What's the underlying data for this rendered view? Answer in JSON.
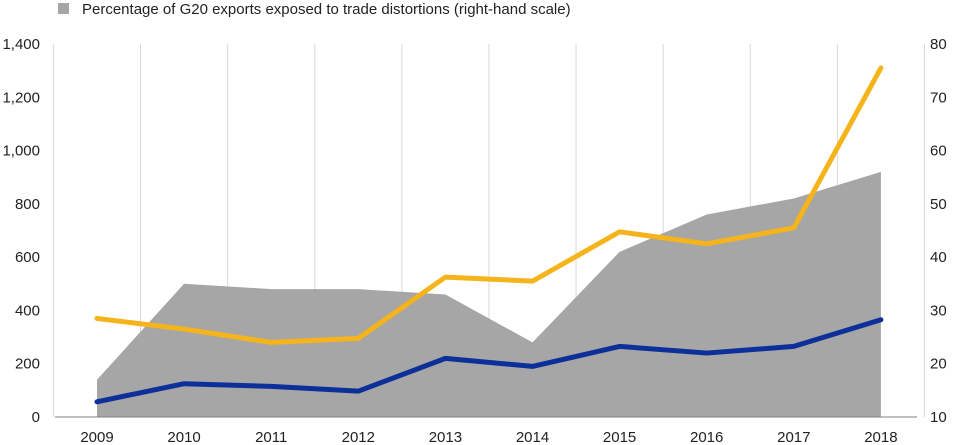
{
  "chart_data": {
    "type": "line",
    "x": [
      "2009",
      "2010",
      "2011",
      "2012",
      "2013",
      "2014",
      "2015",
      "2016",
      "2017",
      "2018"
    ],
    "legend": [
      {
        "label": "Percentage of G20 exports exposed to trade distortions (right-hand scale)",
        "color": "#a6a6a6"
      }
    ],
    "series": [
      {
        "axis": "right",
        "kind": "area",
        "color": "#a6a6a6",
        "values": [
          17,
          35,
          34,
          34,
          33,
          24,
          41,
          48,
          51,
          56
        ]
      },
      {
        "axis": "left",
        "kind": "line",
        "color": "#f5b31c",
        "values": [
          370,
          330,
          280,
          295,
          525,
          510,
          695,
          650,
          710,
          1310
        ]
      },
      {
        "axis": "left",
        "kind": "line",
        "color": "#0d2f9a",
        "values": [
          57,
          125,
          115,
          97,
          220,
          190,
          265,
          240,
          265,
          365
        ]
      }
    ],
    "left_axis": {
      "min": 0,
      "max": 1400,
      "step": 200
    },
    "right_axis": {
      "min": 10,
      "max": 80,
      "step": 10
    },
    "grid": "vertical"
  }
}
